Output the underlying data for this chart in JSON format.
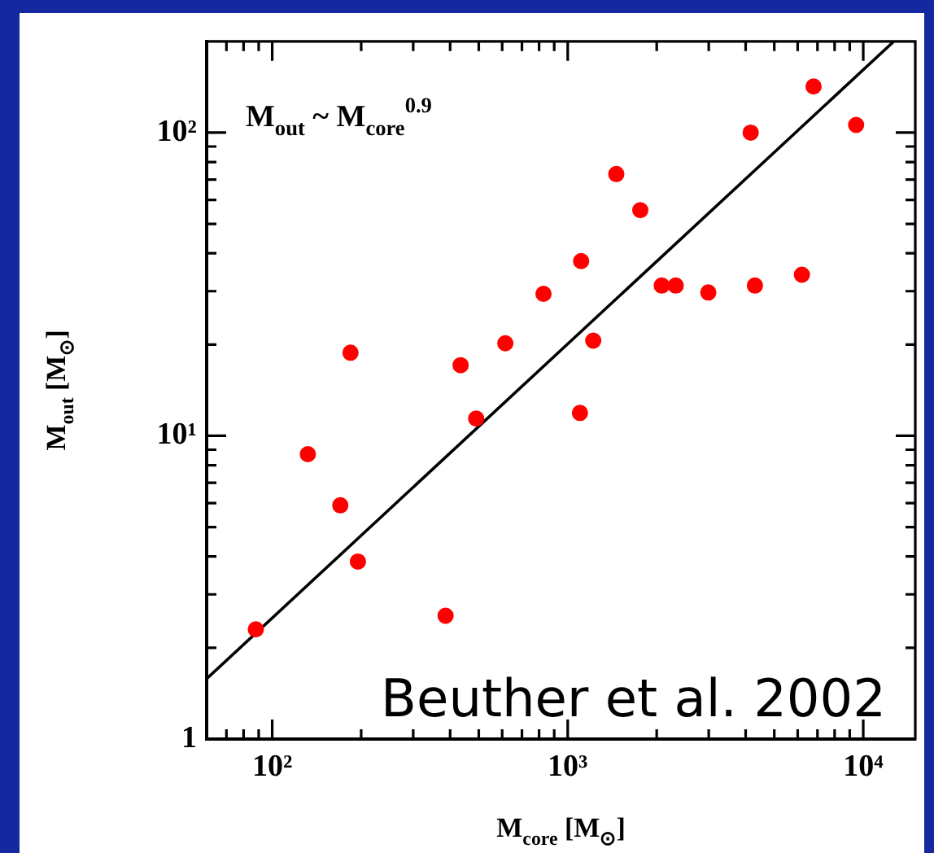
{
  "chart_data": {
    "type": "scatter",
    "xlabel": "M$_{core}$ [M$_{⊙}$]",
    "ylabel": "M$_{out}$ [M$_{⊙}$]",
    "log": "xy",
    "legend": false,
    "xlim": [
      60,
      15000
    ],
    "ylim": [
      1,
      200
    ],
    "xticks": [
      {
        "value": 70,
        "label": null
      },
      {
        "value": 80,
        "label": null
      },
      {
        "value": 90,
        "label": null
      },
      {
        "value": 100,
        "label": "10²"
      },
      {
        "value": 200,
        "label": null
      },
      {
        "value": 300,
        "label": null
      },
      {
        "value": 400,
        "label": null
      },
      {
        "value": 500,
        "label": null
      },
      {
        "value": 600,
        "label": null
      },
      {
        "value": 700,
        "label": null
      },
      {
        "value": 800,
        "label": null
      },
      {
        "value": 900,
        "label": null
      },
      {
        "value": 1000,
        "label": "10³"
      },
      {
        "value": 2000,
        "label": null
      },
      {
        "value": 3000,
        "label": null
      },
      {
        "value": 4000,
        "label": null
      },
      {
        "value": 5000,
        "label": null
      },
      {
        "value": 6000,
        "label": null
      },
      {
        "value": 7000,
        "label": null
      },
      {
        "value": 8000,
        "label": null
      },
      {
        "value": 9000,
        "label": null
      },
      {
        "value": 10000,
        "label": "10⁴"
      }
    ],
    "yticks": [
      1,
      {
        "value": 2,
        "label": null
      },
      {
        "value": 3,
        "label": null
      },
      {
        "value": 4,
        "label": null
      },
      {
        "value": 5,
        "label": null
      },
      {
        "value": 6,
        "label": null
      },
      {
        "value": 7,
        "label": null
      },
      {
        "value": 8,
        "label": null
      },
      {
        "value": 9,
        "label": null
      },
      {
        "value": 10,
        "label": "10¹"
      },
      {
        "value": 20,
        "label": null
      },
      {
        "value": 30,
        "label": null
      },
      {
        "value": 40,
        "label": null
      },
      {
        "value": 50,
        "label": null
      },
      {
        "value": 60,
        "label": null
      },
      {
        "value": 70,
        "label": null
      },
      {
        "value": 80,
        "label": null
      },
      {
        "value": 90,
        "label": null
      },
      {
        "value": 100,
        "label": "10²"
      }
    ],
    "annotations": [
      "M$_{out}$ ~ M$_{core}$$^{0.9}$",
      "Beuther et al. 2002"
    ],
    "series": [
      {
        "marker": "circle",
        "color": "#ff0000",
        "x": [
          88,
          132,
          170,
          184,
          195,
          386,
          434,
          490,
          615,
          828,
          1110,
          1100,
          1220,
          1460,
          1760,
          2080,
          2320,
          2990,
          4160,
          4300,
          6200,
          6790,
          9460
        ],
        "values": [
          2.3,
          8.7,
          5.9,
          18.8,
          3.85,
          2.55,
          17.1,
          11.4,
          20.2,
          29.4,
          37.7,
          11.9,
          20.6,
          73,
          55.5,
          31.3,
          31.3,
          29.7,
          100,
          31.3,
          34,
          142,
          106
        ]
      },
      {
        "type": "line",
        "marker": "none",
        "color": "#000000",
        "x": [
          60,
          12700
        ],
        "values": [
          1.58,
          200
        ]
      }
    ]
  }
}
